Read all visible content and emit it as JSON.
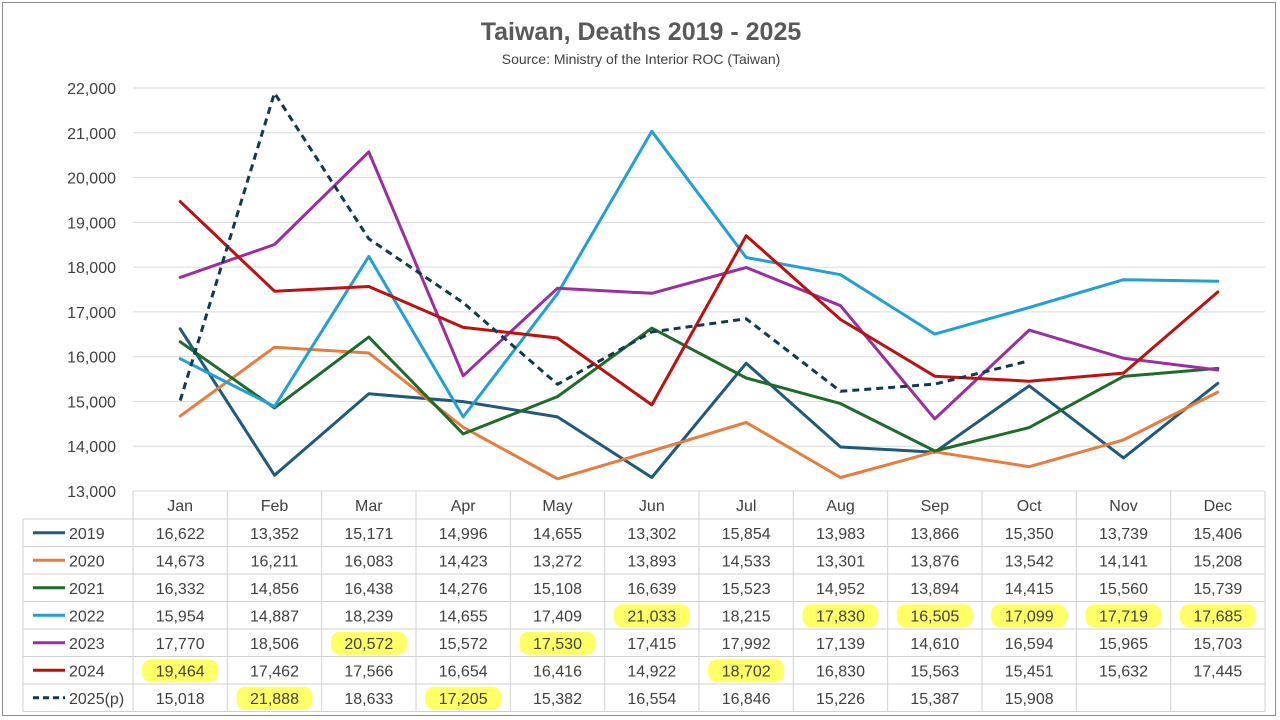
{
  "chart_data": {
    "type": "line",
    "title": "Taiwan, Deaths 2019 - 2025",
    "subtitle": "Source: Ministry of the Interior ROC (Taiwan)",
    "categories": [
      "Jan",
      "Feb",
      "Mar",
      "Apr",
      "May",
      "Jun",
      "Jul",
      "Aug",
      "Sep",
      "Oct",
      "Nov",
      "Dec"
    ],
    "ylim": [
      13000,
      22000
    ],
    "yticks": [
      13000,
      14000,
      15000,
      16000,
      17000,
      18000,
      19000,
      20000,
      21000,
      22000
    ],
    "ytick_labels": [
      "13,000",
      "14,000",
      "15,000",
      "16,000",
      "17,000",
      "18,000",
      "19,000",
      "20,000",
      "21,000",
      "22,000"
    ],
    "grid": true,
    "series": [
      {
        "name": "2019",
        "color": "#1f5a7e",
        "dashed": false,
        "values": [
          16622,
          13352,
          15171,
          14996,
          14655,
          13302,
          15854,
          13983,
          13866,
          15350,
          13739,
          15406
        ],
        "labels": [
          "16,622",
          "13,352",
          "15,171",
          "14,996",
          "14,655",
          "13,302",
          "15,854",
          "13,983",
          "13,866",
          "15,350",
          "13,739",
          "15,406"
        ],
        "highlight": []
      },
      {
        "name": "2020",
        "color": "#e87b3d",
        "dashed": false,
        "values": [
          14673,
          16211,
          16083,
          14423,
          13272,
          13893,
          14533,
          13301,
          13876,
          13542,
          14141,
          15208
        ],
        "labels": [
          "14,673",
          "16,211",
          "16,083",
          "14,423",
          "13,272",
          "13,893",
          "14,533",
          "13,301",
          "13,876",
          "13,542",
          "14,141",
          "15,208"
        ],
        "highlight": []
      },
      {
        "name": "2021",
        "color": "#1e6b2a",
        "dashed": false,
        "values": [
          16332,
          14856,
          16438,
          14276,
          15108,
          16639,
          15523,
          14952,
          13894,
          14415,
          15560,
          15739
        ],
        "labels": [
          "16,332",
          "14,856",
          "16,438",
          "14,276",
          "15,108",
          "16,639",
          "15,523",
          "14,952",
          "13,894",
          "14,415",
          "15,560",
          "15,739"
        ],
        "highlight": []
      },
      {
        "name": "2022",
        "color": "#22a0d6",
        "dashed": false,
        "values": [
          15954,
          14887,
          18239,
          14655,
          17409,
          21033,
          18215,
          17830,
          16505,
          17099,
          17719,
          17685
        ],
        "labels": [
          "15,954",
          "14,887",
          "18,239",
          "14,655",
          "17,409",
          "21,033",
          "18,215",
          "17,830",
          "16,505",
          "17,099",
          "17,719",
          "17,685"
        ],
        "highlight": [
          5,
          7,
          8,
          9,
          10,
          11
        ]
      },
      {
        "name": "2023",
        "color": "#9b2f9e",
        "dashed": false,
        "values": [
          17770,
          18506,
          20572,
          15572,
          17530,
          17415,
          17992,
          17139,
          14610,
          16594,
          15965,
          15703
        ],
        "labels": [
          "17,770",
          "18,506",
          "20,572",
          "15,572",
          "17,530",
          "17,415",
          "17,992",
          "17,139",
          "14,610",
          "16,594",
          "15,965",
          "15,703"
        ],
        "highlight": [
          2,
          4
        ]
      },
      {
        "name": "2024",
        "color": "#bf1010",
        "dashed": false,
        "values": [
          19464,
          17462,
          17566,
          16654,
          16416,
          14922,
          18702,
          16830,
          15563,
          15451,
          15632,
          17445
        ],
        "labels": [
          "19,464",
          "17,462",
          "17,566",
          "16,654",
          "16,416",
          "14,922",
          "18,702",
          "16,830",
          "15,563",
          "15,451",
          "15,632",
          "17,445"
        ],
        "highlight": [
          0,
          6
        ]
      },
      {
        "name": "2025(p)",
        "color": "#113a4f",
        "dashed": true,
        "values": [
          15018,
          21888,
          18633,
          17205,
          15382,
          16554,
          16846,
          15226,
          15387,
          15908,
          null,
          null
        ],
        "labels": [
          "15,018",
          "21,888",
          "18,633",
          "17,205",
          "15,382",
          "16,554",
          "16,846",
          "15,226",
          "15,387",
          "15,908",
          "",
          ""
        ],
        "highlight": [
          1,
          3
        ]
      }
    ],
    "highlight_color": "#ffff66"
  }
}
